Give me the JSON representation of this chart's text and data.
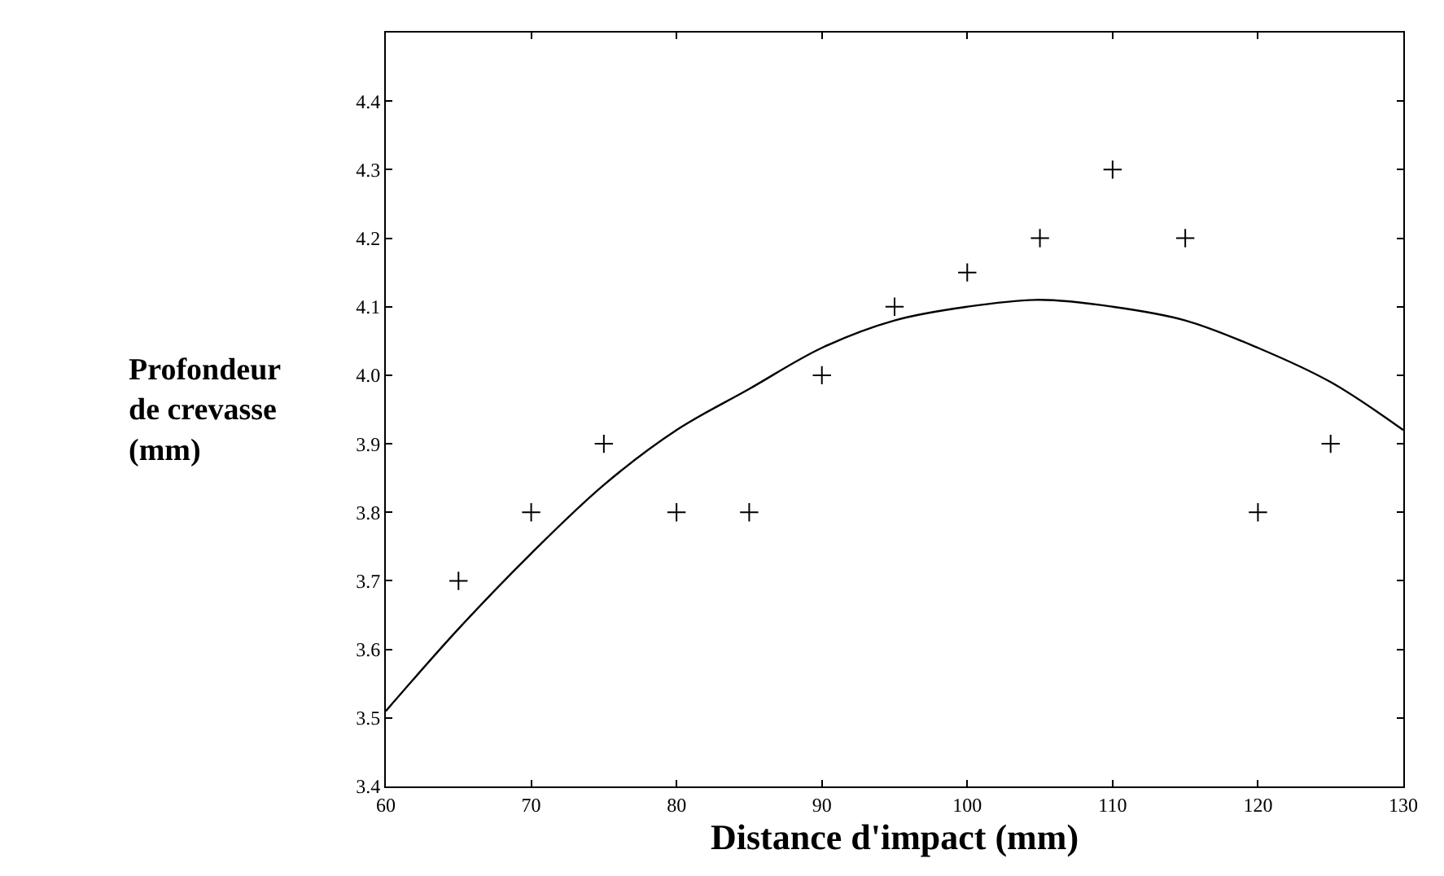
{
  "chart_data": {
    "type": "scatter",
    "xlabel": "Distance d'impact (mm)",
    "ylabel": "Profondeur\nde crevasse\n(mm)",
    "xlim": [
      60,
      130
    ],
    "xticks": [
      60,
      70,
      80,
      90,
      100,
      110,
      120,
      130
    ],
    "ylim": [
      3.4,
      4.5
    ],
    "yticks": [
      3.4,
      3.5,
      3.6,
      3.7,
      3.8,
      3.9,
      {
        "value": 4,
        "label": "4.0"
      },
      4.1,
      4.2,
      4.3,
      4.4
    ],
    "series": [
      {
        "marker": "cross",
        "color": "#000000",
        "x": [
          65,
          70,
          75,
          80,
          85,
          90,
          95,
          100,
          105,
          110,
          115,
          120,
          125
        ],
        "values": [
          3.7,
          3.8,
          3.9,
          3.8,
          3.8,
          4.0,
          4.1,
          4.15,
          4.2,
          4.3,
          4.2,
          3.8,
          3.9
        ]
      },
      {
        "type": "line",
        "marker": "none",
        "line_style": "solid",
        "color": "#000000",
        "x": [
          60,
          65,
          70,
          75,
          80,
          85,
          90,
          95,
          100,
          105,
          110,
          115,
          120,
          125,
          130
        ],
        "values": [
          3.51,
          3.63,
          3.74,
          3.84,
          3.92,
          3.98,
          4.04,
          4.08,
          4.1,
          4.11,
          4.1,
          4.08,
          4.04,
          3.99,
          3.92
        ]
      }
    ]
  }
}
